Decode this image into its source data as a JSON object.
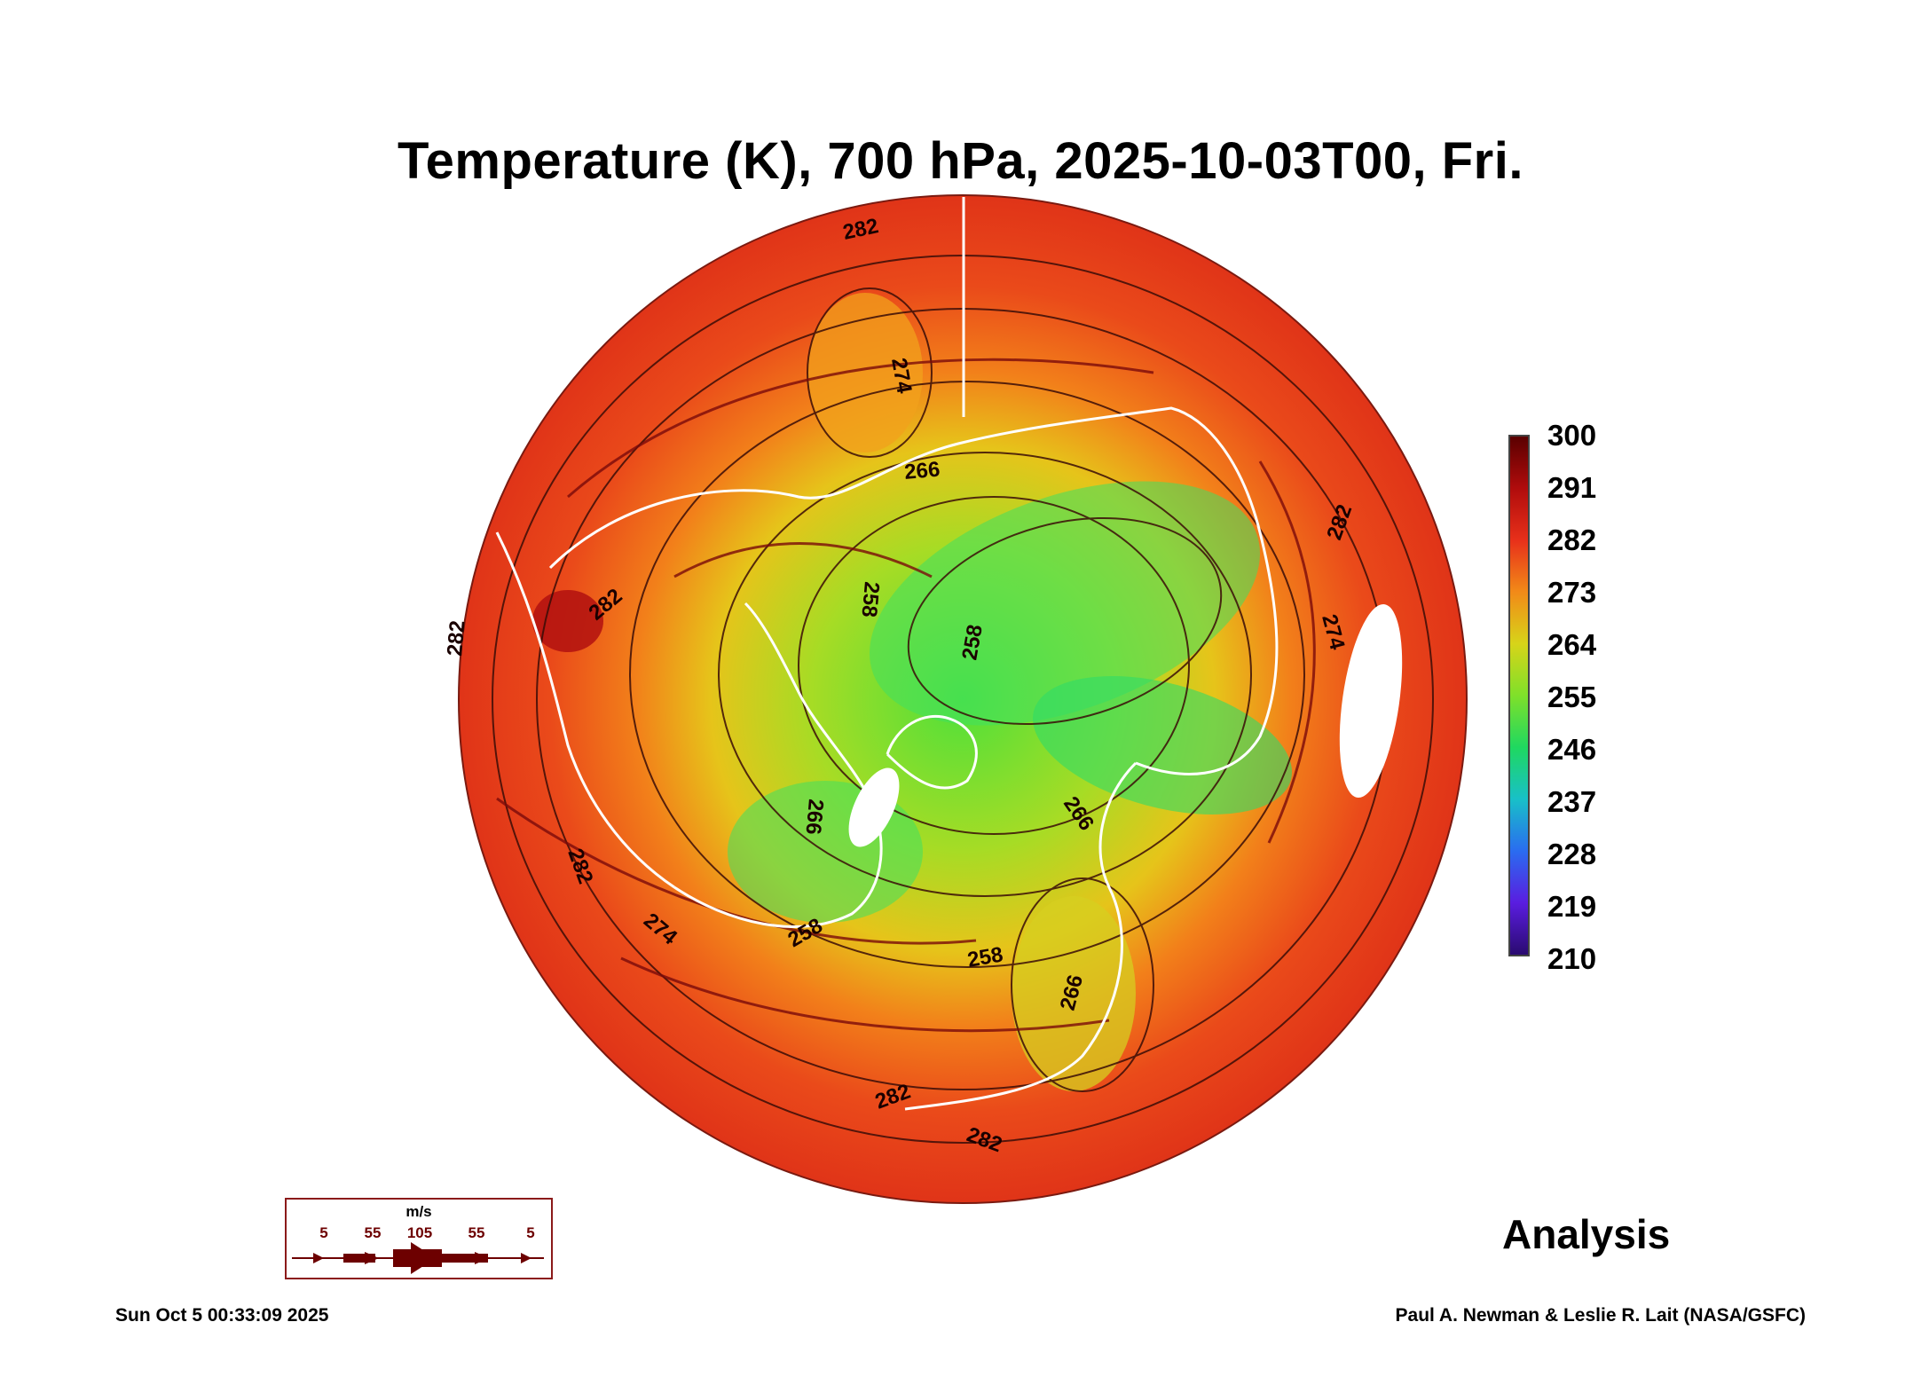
{
  "title": "Temperature (K), 700 hPa, 2025-10-03T00, Fri.",
  "colorbar": {
    "labels": [
      "300",
      "291",
      "282",
      "273",
      "264",
      "255",
      "246",
      "237",
      "228",
      "219",
      "210"
    ],
    "min": 210,
    "max": 300,
    "stops": [
      {
        "value": 300,
        "color": "#5a0000"
      },
      {
        "value": 291,
        "color": "#b00c0c"
      },
      {
        "value": 282,
        "color": "#e8301a"
      },
      {
        "value": 273,
        "color": "#f28a18"
      },
      {
        "value": 264,
        "color": "#d7d419"
      },
      {
        "value": 255,
        "color": "#7fe02a"
      },
      {
        "value": 246,
        "color": "#1fd860"
      },
      {
        "value": 237,
        "color": "#18c0c8"
      },
      {
        "value": 228,
        "color": "#2a6cf0"
      },
      {
        "value": 219,
        "color": "#5a1de0"
      },
      {
        "value": 210,
        "color": "#2a0a70"
      }
    ]
  },
  "contour_labels": [
    {
      "text": "282"
    },
    {
      "text": "274"
    },
    {
      "text": "266"
    },
    {
      "text": "282"
    },
    {
      "text": "258"
    },
    {
      "text": "258"
    },
    {
      "text": "282"
    },
    {
      "text": "274"
    },
    {
      "text": "282"
    },
    {
      "text": "266"
    },
    {
      "text": "266"
    },
    {
      "text": "258"
    },
    {
      "text": "274"
    },
    {
      "text": "282"
    },
    {
      "text": "266"
    },
    {
      "text": "282"
    },
    {
      "text": "282"
    },
    {
      "text": "258"
    }
  ],
  "wind_legend": {
    "unit": "m/s",
    "values": [
      "5",
      "55",
      "105",
      "55",
      "5"
    ]
  },
  "analysis_label": "Analysis",
  "timestamp": "Sun Oct  5 00:33:09 2025",
  "credits": "Paul A. Newman & Leslie R. Lait (NASA/GSFC)"
}
